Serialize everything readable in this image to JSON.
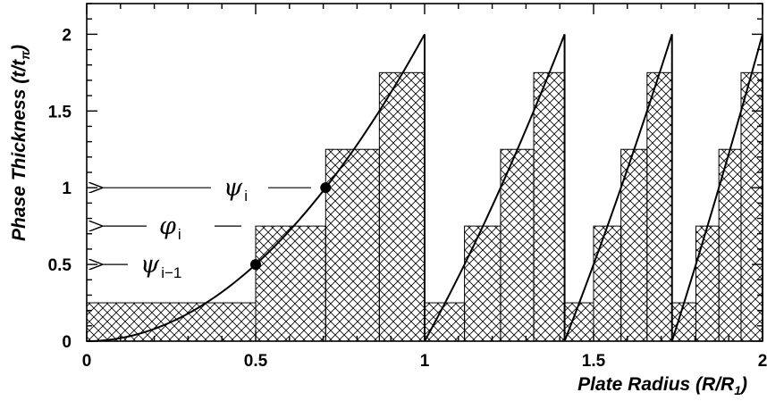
{
  "chart_data": {
    "type": "line",
    "xlabel": "Plate Radius (R/R",
    "xlabel_sub": "1",
    "xlabel_end": ")",
    "ylabel": "Phase Thickness (t/t",
    "ylabel_sub": "π",
    "ylabel_end": ")",
    "xlim": [
      0,
      2
    ],
    "ylim": [
      0,
      2.2
    ],
    "xticks": [
      {
        "value": 0,
        "label": "0"
      },
      {
        "value": 0.5,
        "label": "0.5"
      },
      {
        "value": 1,
        "label": "1"
      },
      {
        "value": 1.5,
        "label": "1.5"
      },
      {
        "value": 2,
        "label": "2"
      }
    ],
    "yticks": [
      {
        "value": 0,
        "label": "0"
      },
      {
        "value": 0.5,
        "label": "0.5"
      },
      {
        "value": 1,
        "label": "1"
      },
      {
        "value": 1.5,
        "label": "1.5"
      },
      {
        "value": 2,
        "label": "2"
      }
    ],
    "curve": {
      "formula": "t = 2(R/R1)^2 mod 2",
      "zones_x": [
        0,
        1,
        1.4142,
        1.7321,
        2
      ]
    },
    "steps": [
      {
        "x0": 0,
        "x1": 0.5,
        "y": 0.25
      },
      {
        "x0": 0.5,
        "x1": 0.7071,
        "y": 0.75
      },
      {
        "x0": 0.7071,
        "x1": 0.866,
        "y": 1.25
      },
      {
        "x0": 0.866,
        "x1": 1,
        "y": 1.75
      },
      {
        "x0": 1,
        "x1": 1.118,
        "y": 0.25
      },
      {
        "x0": 1.118,
        "x1": 1.2247,
        "y": 0.75
      },
      {
        "x0": 1.2247,
        "x1": 1.3229,
        "y": 1.25
      },
      {
        "x0": 1.3229,
        "x1": 1.4142,
        "y": 1.75
      },
      {
        "x0": 1.4142,
        "x1": 1.5,
        "y": 0.25
      },
      {
        "x0": 1.5,
        "x1": 1.5811,
        "y": 0.75
      },
      {
        "x0": 1.5811,
        "x1": 1.6583,
        "y": 1.25
      },
      {
        "x0": 1.6583,
        "x1": 1.7321,
        "y": 1.75
      },
      {
        "x0": 1.7321,
        "x1": 1.8028,
        "y": 0.25
      },
      {
        "x0": 1.8028,
        "x1": 1.8708,
        "y": 0.75
      },
      {
        "x0": 1.8708,
        "x1": 1.9365,
        "y": 1.25
      },
      {
        "x0": 1.9365,
        "x1": 2.0,
        "y": 1.75
      }
    ],
    "points": [
      {
        "x": 0.5,
        "y": 0.5
      },
      {
        "x": 0.7071,
        "y": 1.0
      }
    ],
    "annotations": [
      {
        "symbol": "ψ",
        "sub": "i",
        "y": 1.0
      },
      {
        "symbol": "φ",
        "sub": "i",
        "y": 0.75
      },
      {
        "symbol": "ψ",
        "sub": "i−1",
        "y": 0.5
      }
    ],
    "grid": false,
    "legend": "none"
  }
}
